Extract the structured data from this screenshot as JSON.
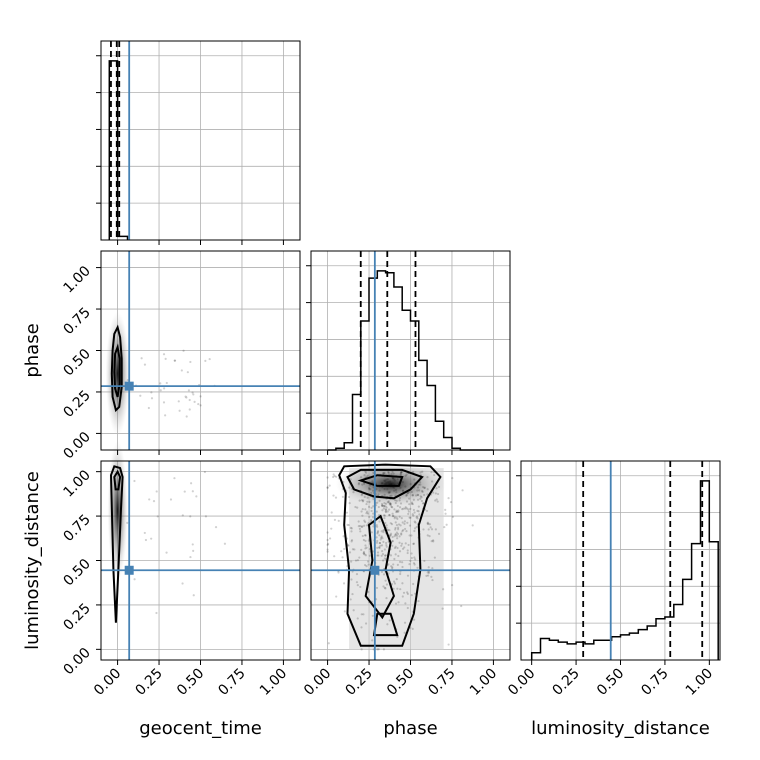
{
  "chart_data": {
    "type": "scatter",
    "kind": "corner-plot",
    "parameters": [
      "geocent_time",
      "phase",
      "luminosity_distance"
    ],
    "axis_ranges": {
      "geocent_time": [
        -0.1,
        1.1
      ],
      "phase": [
        -0.1,
        1.1
      ],
      "luminosity_distance": [
        -0.06,
        1.06
      ]
    },
    "tick_values": [
      0.0,
      0.25,
      0.5,
      0.75,
      1.0
    ],
    "tick_labels": [
      "0.00",
      "0.25",
      "0.50",
      "0.75",
      "1.00"
    ],
    "grid": true,
    "truth_color": "#4682b4",
    "truths": {
      "geocent_time": 0.07,
      "phase": 0.285,
      "luminosity_distance": 0.445
    },
    "quantiles": {
      "geocent_time": [
        -0.04,
        -0.005,
        0.01
      ],
      "phase": [
        0.2,
        0.36,
        0.53
      ],
      "luminosity_distance": [
        0.29,
        0.78,
        0.96
      ]
    },
    "histograms": {
      "geocent_time": {
        "edges": [
          -0.05,
          0.0,
          0.06
        ],
        "values": [
          1.0,
          0.02
        ]
      },
      "phase": {
        "edges": [
          0.0,
          0.05,
          0.1,
          0.15,
          0.2,
          0.25,
          0.3,
          0.35,
          0.4,
          0.45,
          0.5,
          0.55,
          0.6,
          0.65,
          0.7,
          0.75,
          0.8,
          0.85,
          0.9,
          0.95,
          1.0
        ],
        "values": [
          0.0,
          0.01,
          0.04,
          0.31,
          0.72,
          0.96,
          1.0,
          0.99,
          0.91,
          0.78,
          0.72,
          0.5,
          0.36,
          0.16,
          0.07,
          0.01,
          0.0,
          0.0,
          0.0,
          0.0
        ]
      },
      "luminosity_distance": {
        "edges": [
          0.0,
          0.05,
          0.1,
          0.15,
          0.2,
          0.25,
          0.3,
          0.35,
          0.4,
          0.45,
          0.5,
          0.55,
          0.6,
          0.65,
          0.7,
          0.75,
          0.8,
          0.85,
          0.9,
          0.95,
          1.0,
          1.05
        ],
        "values": [
          0.04,
          0.12,
          0.11,
          0.1,
          0.09,
          0.1,
          0.09,
          0.11,
          0.11,
          0.13,
          0.14,
          0.15,
          0.17,
          0.19,
          0.23,
          0.24,
          0.31,
          0.45,
          0.65,
          1.0,
          0.66
        ]
      }
    }
  }
}
